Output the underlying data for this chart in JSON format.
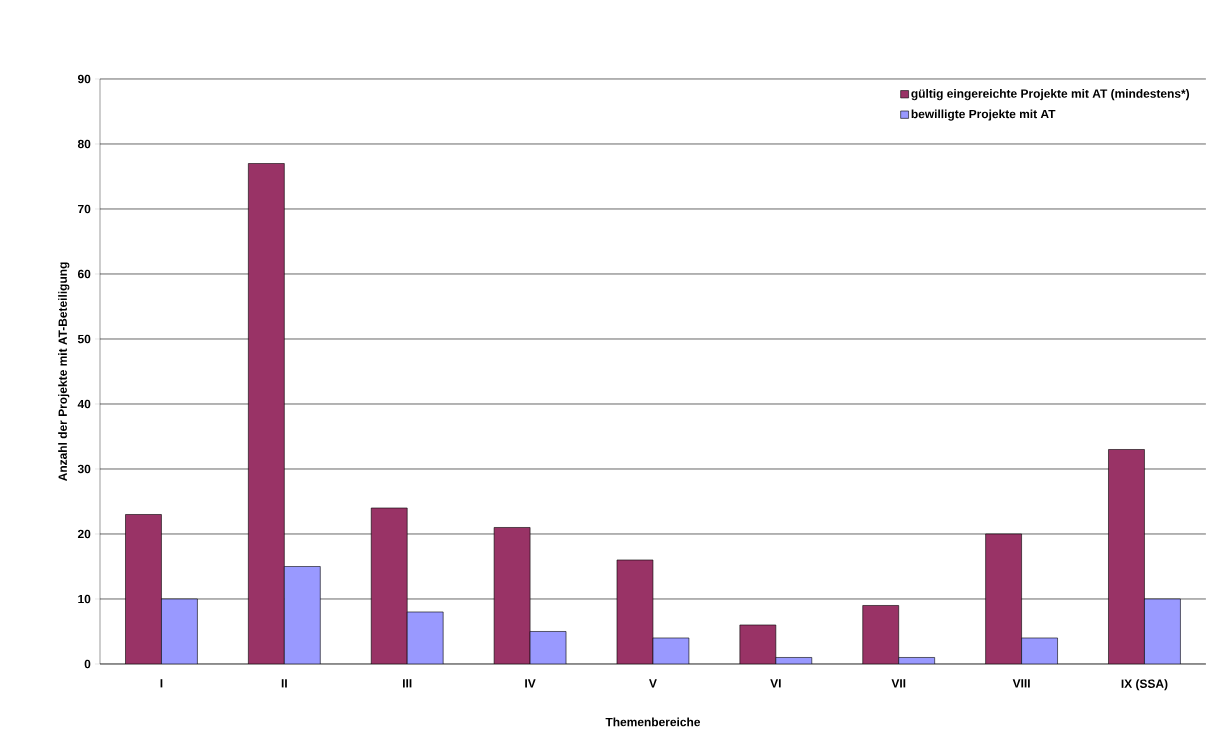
{
  "chart_data": {
    "type": "bar",
    "xlabel": "Themenbereiche",
    "ylabel": "Anzahl der Projekte mit AT-Beteiligung",
    "categories": [
      "I",
      "II",
      "III",
      "IV",
      "V",
      "VI",
      "VII",
      "VIII",
      "IX (SSA)"
    ],
    "series": [
      {
        "name": "gültig eingereichte Projekte mit AT (mindestens*)",
        "color": "#993366",
        "values": [
          23,
          77,
          24,
          21,
          16,
          6,
          9,
          20,
          33
        ]
      },
      {
        "name": "bewilligte Projekte mit AT",
        "color": "#9999ff",
        "values": [
          10,
          15,
          8,
          5,
          4,
          1,
          1,
          4,
          10
        ]
      }
    ],
    "ylim": [
      0,
      90
    ],
    "yticks": [
      0,
      10,
      20,
      30,
      40,
      50,
      60,
      70,
      80,
      90
    ],
    "grid": "y",
    "legend": "top right"
  }
}
